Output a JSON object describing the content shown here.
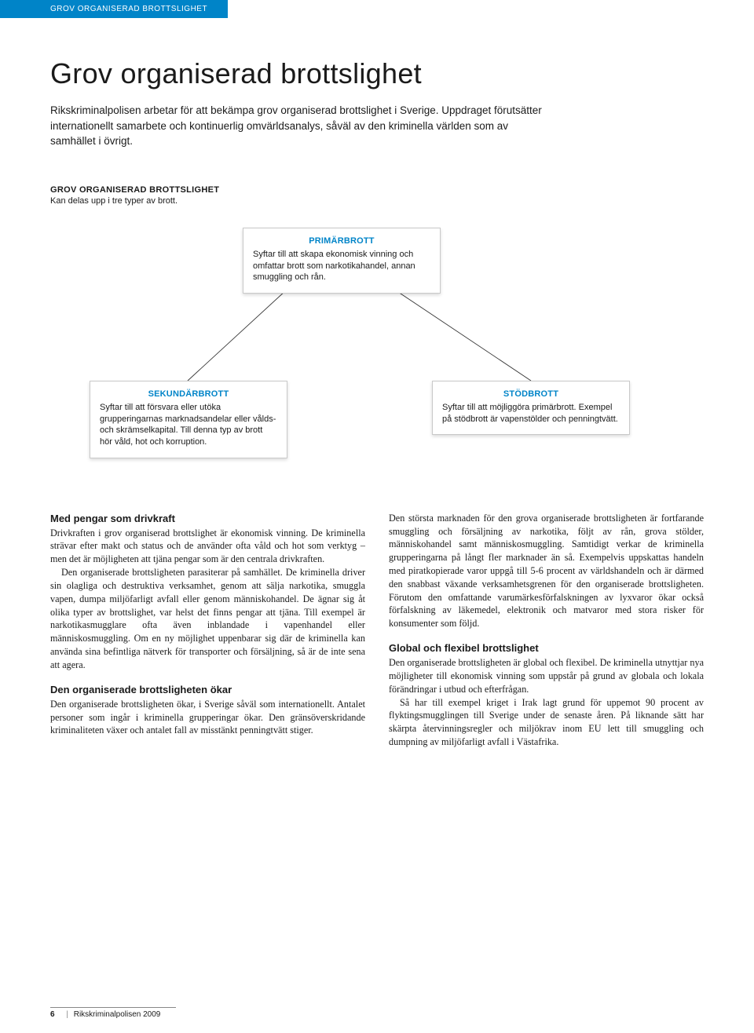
{
  "header": {
    "label": "GROV ORGANISERAD BROTTSLIGHET"
  },
  "title": "Grov organiserad brottslighet",
  "intro": "Rikskriminalpolisen arbetar för att bekämpa grov organiserad brottslighet i Sverige. Uppdraget förutsätter internationellt samarbete och kontinuerlig omvärldsanalys, såväl av den kriminella världen som av samhället i övrigt.",
  "diagram": {
    "heading": "GROV ORGANISERAD BROTTSLIGHET",
    "sub": "Kan delas upp i tre typer av brott.",
    "nodes": {
      "top": {
        "title": "PRIMÄRBROTT",
        "body": "Syftar till att skapa ekonomisk vinning och omfattar brott som narkotikahandel, annan smuggling och rån."
      },
      "left": {
        "title": "SEKUNDÄRBROTT",
        "body": "Syftar till att försvara eller utöka grupperingarnas marknadsandelar eller vålds- och skrämselkapital. Till denna typ av brott hör våld, hot och korruption."
      },
      "right": {
        "title": "STÖDBROTT",
        "body": "Syftar till att möjliggöra primärbrott. Exempel på stödbrott är vapenstölder och penningtvätt."
      }
    },
    "style": {
      "title_color": "#0084c8",
      "border_color": "#c9c9c9",
      "line_color": "#333333"
    }
  },
  "columns": {
    "left": [
      {
        "heading": "Med pengar som drivkraft",
        "paragraphs": [
          "Drivkraften i grov organiserad brottslighet är ekonomisk vinning. De kriminella strävar efter makt och status och de använder ofta våld och hot som verktyg – men det är möjligheten att tjäna pengar som är den centrala drivkraften.",
          "Den organiserade brottsligheten parasiterar på samhället. De kriminella driver sin olagliga och destruktiva verksamhet, genom att sälja narkotika, smuggla vapen, dumpa miljöfarligt avfall eller genom människohandel. De ägnar sig åt olika typer av brottslighet, var helst det finns pengar att tjäna. Till exempel är narkotikasmugglare ofta även inblandade i vapenhandel eller människosmuggling. Om en ny möjlighet uppenbarar sig där de kriminella kan använda sina befintliga nätverk för transporter och försäljning, så är de inte sena att agera."
        ]
      },
      {
        "heading": "Den organiserade brottsligheten ökar",
        "paragraphs": [
          "Den organiserade brottsligheten ökar, i Sverige såväl som internationellt. Antalet personer som ingår i kriminella grupperingar ökar. Den gränsöverskridande kriminaliteten växer och antalet fall av misstänkt penningtvätt stiger."
        ]
      }
    ],
    "right": [
      {
        "paragraphs": [
          "Den största marknaden för den grova organiserade brottsligheten är fortfarande smuggling och försäljning av narkotika, följt av rån, grova stölder, människohandel samt människosmuggling. Samtidigt verkar de kriminella grupperingarna på långt fler marknader än så. Exempelvis uppskattas handeln med piratkopierade varor uppgå till 5-6 procent av världshandeln och är därmed den snabbast växande verksamhetsgrenen för den organiserade brottsligheten. Förutom den omfattande varumärkesförfalskningen av lyxvaror ökar också förfalskning av läkemedel, elektronik och matvaror med stora risker för konsumenter som följd."
        ]
      },
      {
        "heading": "Global och flexibel brottslighet",
        "paragraphs": [
          "Den organiserade brottsligheten är global och flexibel. De kriminella utnyttjar nya möjligheter till ekonomisk vinning som uppstår på grund av globala och lokala förändringar i utbud och efterfrågan.",
          "Så har till exempel kriget i Irak lagt grund för uppemot 90 procent av flyktingsmugglingen till Sverige under de senaste åren. På liknande sätt har skärpta återvinningsregler och miljökrav inom EU lett till smuggling och dumpning av miljöfarligt avfall i Västafrika."
        ]
      }
    ]
  },
  "footer": {
    "page": "6",
    "text": "Rikskriminalpolisen 2009"
  }
}
